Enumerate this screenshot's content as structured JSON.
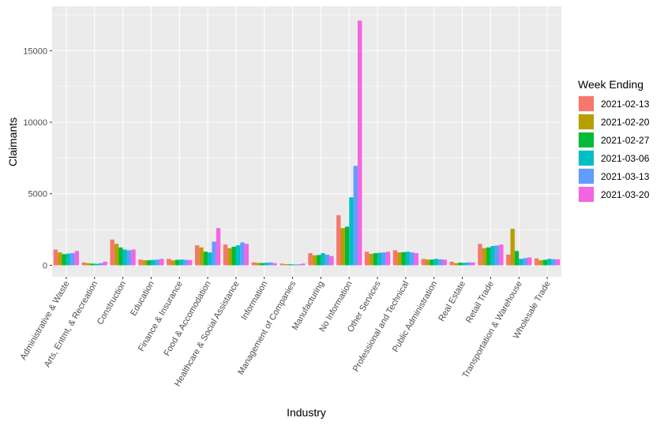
{
  "chart_data": {
    "type": "bar",
    "xlabel": "Industry",
    "ylabel": "Claimants",
    "ylim": [
      -800,
      18100
    ],
    "yticks": [
      0,
      5000,
      10000,
      15000
    ],
    "grid": true,
    "legend_position": "right",
    "legend_title": "Week Ending",
    "categories": [
      "Administrative & Waste",
      "Arts, Entmt, & Recreation",
      "Construction",
      "Education",
      "Finance & Insurance",
      "Food & Accomodation",
      "Healthcare & Social Assistance",
      "Information",
      "Management of Companies",
      "Manufacturing",
      "No Information",
      "Other Services",
      "Professional and Technical",
      "Public Administration",
      "Real Estate",
      "Retail Trade",
      "Transportation & Warehouse",
      "Wholesale Trade"
    ],
    "series": [
      {
        "name": "2021-02-13",
        "color": "#F8766D",
        "values": [
          1100,
          200,
          1800,
          400,
          450,
          1400,
          1450,
          200,
          120,
          850,
          3500,
          950,
          1050,
          450,
          250,
          1500,
          750,
          480
        ]
      },
      {
        "name": "2021-02-20",
        "color": "#B79F00",
        "values": [
          900,
          150,
          1500,
          350,
          350,
          1250,
          1200,
          170,
          80,
          700,
          2600,
          800,
          900,
          400,
          150,
          1200,
          2550,
          350
        ]
      },
      {
        "name": "2021-02-27",
        "color": "#00BA38",
        "values": [
          780,
          120,
          1250,
          350,
          380,
          950,
          1300,
          160,
          70,
          720,
          2700,
          850,
          920,
          400,
          180,
          1250,
          1000,
          380
        ]
      },
      {
        "name": "2021-03-06",
        "color": "#00BFC4",
        "values": [
          820,
          110,
          1100,
          380,
          400,
          900,
          1400,
          180,
          60,
          850,
          4750,
          880,
          950,
          450,
          180,
          1350,
          450,
          450
        ]
      },
      {
        "name": "2021-03-13",
        "color": "#619CFF",
        "values": [
          850,
          150,
          1050,
          400,
          380,
          1650,
          1600,
          200,
          70,
          750,
          6950,
          900,
          900,
          420,
          200,
          1380,
          500,
          430
        ]
      },
      {
        "name": "2021-03-20",
        "color": "#F564E3",
        "values": [
          1000,
          250,
          1100,
          450,
          370,
          2600,
          1500,
          150,
          120,
          650,
          17100,
          950,
          850,
          400,
          200,
          1450,
          550,
          420
        ]
      }
    ]
  }
}
